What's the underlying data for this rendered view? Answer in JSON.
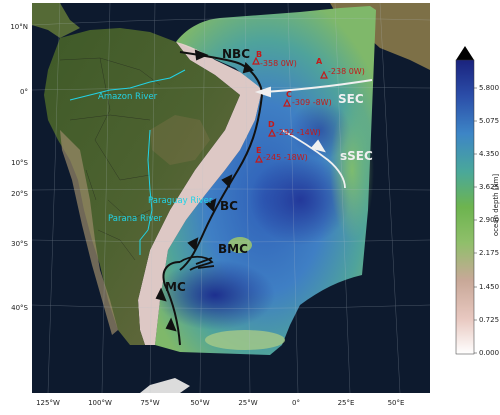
{
  "map": {
    "currents": {
      "nbc": "NBC",
      "sec": "SEC",
      "ssec": "sSEC",
      "bc": "BC",
      "bmc": "BMC",
      "mc": "MC"
    },
    "rivers": {
      "amazon": "Amazon River",
      "paraguay": "Paraguay River",
      "parana": "Parana River"
    },
    "stations": [
      {
        "id": "B",
        "label": "-358 0W)"
      },
      {
        "id": "A",
        "label": "-238 0W)"
      },
      {
        "id": "C",
        "label": "-309 -8W)"
      },
      {
        "id": "D",
        "label": "-292 -14W)"
      },
      {
        "id": "E",
        "label": "-245 -18W)"
      }
    ],
    "lat_ticks": [
      "10°N",
      "0°",
      "10°S",
      "20°S",
      "30°S",
      "40°S"
    ],
    "lon_ticks": [
      "125°W",
      "100°W",
      "75°W",
      "50°W",
      "25°W",
      "0°",
      "25°E",
      "50°E"
    ]
  },
  "colorbar": {
    "label": "ocean depth [km]",
    "ticks": [
      "5.800",
      "5.075",
      "4.350",
      "3.625",
      "2.900",
      "2.175",
      "1.450",
      "0.725",
      "0.000"
    ]
  },
  "colors": {
    "ocean_dark": "#0d1a2e",
    "land": "#4a5a2a",
    "current_arrow": "#111111",
    "flow_arrow": "#f0f0f0",
    "river": "#22d3e6",
    "station": "#c41a1a"
  }
}
